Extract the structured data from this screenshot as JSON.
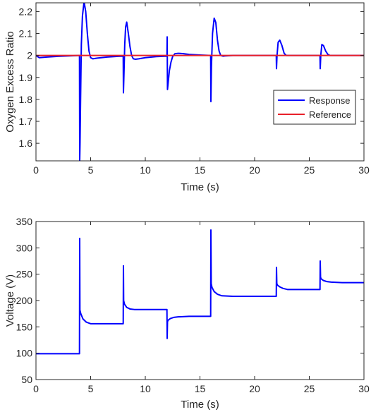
{
  "chart_data": [
    {
      "type": "line",
      "xlabel": "Time (s)",
      "ylabel": "Oxygen Excess Ratio",
      "xlim": [
        0,
        30
      ],
      "ylim": [
        1.52,
        2.24
      ],
      "x_ticks": [
        "0",
        "5",
        "10",
        "15",
        "20",
        "25",
        "30"
      ],
      "y_ticks": [
        "1.6",
        "1.7",
        "1.8",
        "1.9",
        "2",
        "2.1",
        "2.2"
      ],
      "grid": false,
      "legend_position": "middle-right",
      "series": [
        {
          "name": "Response",
          "color": "#0000ff",
          "x": [
            0,
            0.3,
            1,
            2,
            3,
            3.98,
            4.0,
            4.03,
            4.08,
            4.15,
            4.25,
            4.4,
            4.55,
            4.7,
            4.85,
            5.0,
            5.2,
            5.6,
            6.5,
            7.5,
            7.98,
            8.0,
            8.05,
            8.12,
            8.2,
            8.3,
            8.45,
            8.6,
            8.75,
            8.9,
            9.1,
            9.4,
            10,
            11,
            11.98,
            12.0,
            12.03,
            12.1,
            12.2,
            12.35,
            12.5,
            12.7,
            13.0,
            13.5,
            14,
            15,
            15.98,
            16.0,
            16.05,
            16.15,
            16.3,
            16.45,
            16.6,
            16.75,
            16.9,
            17.1,
            17.3,
            17.6,
            18,
            19,
            20,
            21,
            21.98,
            22.0,
            22.05,
            22.15,
            22.3,
            22.5,
            22.7,
            22.9,
            23.2,
            24,
            25,
            25.98,
            26.0,
            26.05,
            26.15,
            26.3,
            26.5,
            26.7,
            26.9,
            27.3,
            28,
            30
          ],
          "values": [
            2.0,
            1.99,
            1.993,
            1.996,
            1.998,
            2.0,
            1.52,
            1.6,
            1.8,
            2.05,
            2.18,
            2.245,
            2.2,
            2.1,
            2.02,
            1.99,
            1.985,
            1.988,
            1.993,
            1.996,
            1.997,
            1.83,
            1.92,
            2.05,
            2.13,
            2.152,
            2.1,
            2.04,
            2.0,
            1.985,
            1.983,
            1.985,
            1.99,
            1.995,
            1.997,
            2.085,
            1.845,
            1.88,
            1.93,
            1.97,
            1.995,
            2.008,
            2.01,
            2.008,
            2.005,
            2.002,
            2.0,
            1.79,
            1.95,
            2.1,
            2.17,
            2.15,
            2.07,
            2.02,
            2.0,
            1.997,
            1.998,
            1.999,
            2.0,
            2.0,
            2.0,
            2.0,
            2.0,
            1.94,
            2.0,
            2.06,
            2.07,
            2.045,
            2.01,
            2.0,
            2.0,
            2.0,
            2.0,
            2.0,
            1.94,
            2.0,
            2.05,
            2.045,
            2.02,
            2.005,
            2.0,
            2.0,
            2.0,
            2.0
          ]
        },
        {
          "name": "Reference",
          "color": "#e8202a",
          "x": [
            0,
            30
          ],
          "values": [
            2.0,
            2.0
          ]
        }
      ]
    },
    {
      "type": "line",
      "xlabel": "Time (s)",
      "ylabel": "Voltage (V)",
      "xlim": [
        0,
        30
      ],
      "ylim": [
        50,
        350
      ],
      "x_ticks": [
        "0",
        "5",
        "10",
        "15",
        "20",
        "25",
        "30"
      ],
      "y_ticks": [
        "50",
        "100",
        "150",
        "200",
        "250",
        "300",
        "350"
      ],
      "grid": false,
      "series": [
        {
          "color": "#0000ff",
          "x": [
            0,
            3.98,
            4.0,
            4.02,
            4.1,
            4.3,
            4.6,
            5.0,
            6,
            7.98,
            8.0,
            8.02,
            8.1,
            8.3,
            8.6,
            9.0,
            10,
            11.98,
            12.0,
            12.03,
            12.1,
            12.3,
            12.6,
            13,
            14,
            15.98,
            16.0,
            16.03,
            16.1,
            16.3,
            16.6,
            17,
            18,
            21.98,
            22.0,
            22.03,
            22.1,
            22.3,
            22.6,
            23,
            25.98,
            26.0,
            26.03,
            26.1,
            26.3,
            26.6,
            27,
            28,
            30
          ],
          "values": [
            99,
            99,
            318,
            182,
            175,
            165,
            159,
            156,
            156,
            156,
            266,
            200,
            193,
            187,
            184,
            183,
            183,
            183,
            128,
            160,
            163,
            166,
            168,
            169,
            170,
            170,
            334,
            232,
            225,
            217,
            212,
            209,
            208,
            208,
            263,
            232,
            229,
            226,
            223,
            221,
            221,
            275,
            244,
            241,
            238,
            236,
            235,
            234,
            234
          ]
        }
      ]
    }
  ]
}
